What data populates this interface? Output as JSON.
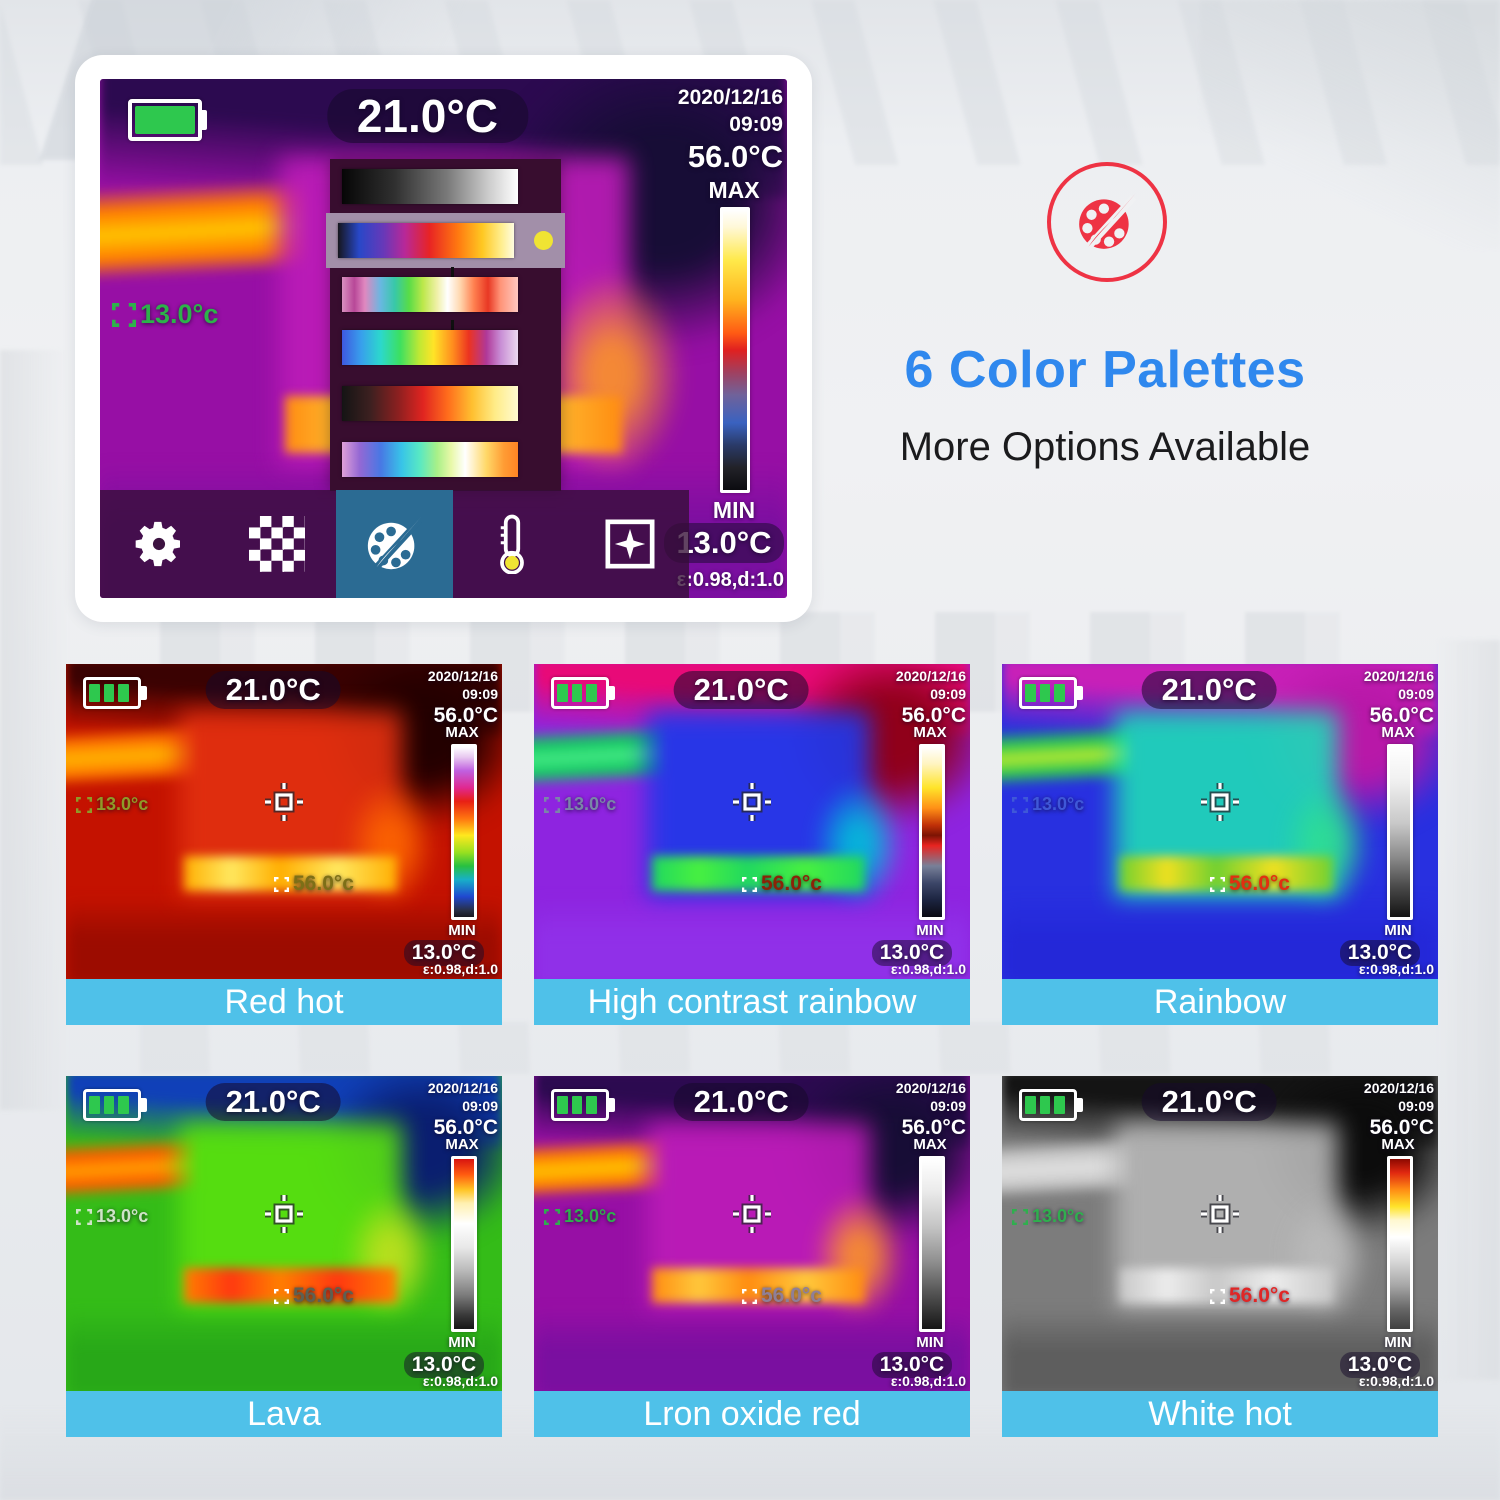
{
  "page": {
    "background_color": "#eceef1",
    "label_bar_color": "#4fc1e9"
  },
  "promo": {
    "headline": "6 Color Palettes",
    "subheadline": "More Options Available",
    "headline_color": "#2f88ee",
    "badge_icon": "palette-icon",
    "badge_color": "#ee3344"
  },
  "screen_overlay": {
    "center_temp": "21.0°C",
    "date": "2020/12/16",
    "time": "09:09",
    "max_temp": "56.0°C",
    "max_label": "MAX",
    "min_label": "MIN",
    "min_temp": "13.0°C",
    "emissivity": "ε:0.98,d:1.0",
    "spot_min": "13.0°c",
    "spot_max": "56.0°c",
    "battery_level": "full"
  },
  "hero_screen": {
    "palette_key": "iron_oxide_red",
    "spot_min_color": "#2db24a",
    "palette_menu": {
      "selected_index": 1,
      "indicator_color": "#f0e433",
      "rows": [
        {
          "colors": [
            "#060606",
            "#7a7a7a",
            "#ffffff"
          ]
        },
        {
          "colors": [
            "#16161e",
            "#2848c8",
            "#b82898",
            "#e82424",
            "#ff7810",
            "#ffc822",
            "#fffce0"
          ],
          "selected": true
        },
        {
          "colors": [
            "#d890c0",
            "#68b8e0",
            "#58dc48",
            "#ffffff",
            "#e83824",
            "#ffc8c0"
          ]
        },
        {
          "colors": [
            "#3e58e0",
            "#2cd8cc",
            "#3ce060",
            "#ffe427",
            "#ec3420",
            "#ecd8f0"
          ]
        },
        {
          "colors": [
            "#141414",
            "#8c2020",
            "#e02420",
            "#ffc030",
            "#fffad0"
          ]
        },
        {
          "colors": [
            "#e0a0d8",
            "#4878e4",
            "#58e8c4",
            "#ffffff",
            "#ff8424"
          ]
        }
      ]
    },
    "toolbar": {
      "active_index": 2,
      "active_bg": "#2b6b93",
      "items": [
        {
          "name": "settings",
          "icon": "gear-icon"
        },
        {
          "name": "image-mode",
          "icon": "grid-icon"
        },
        {
          "name": "palette",
          "icon": "palette-icon"
        },
        {
          "name": "temperature",
          "icon": "thermometer-icon"
        },
        {
          "name": "spot-meter",
          "icon": "crosshair-icon"
        }
      ]
    }
  },
  "thumbnails": [
    {
      "label": "Red hot",
      "palette_key": "red_hot",
      "spot_min_color": "#8f9a28",
      "spot_max_color": "#7d6f17"
    },
    {
      "label": "High contrast rainbow",
      "palette_key": "high_contrast_rainbow",
      "spot_min_color": "#7a86a8",
      "spot_max_color": "#8a2408"
    },
    {
      "label": "Rainbow",
      "palette_key": "rainbow",
      "spot_min_color": "#3f58d8",
      "spot_max_color": "#e22f10"
    },
    {
      "label": "Lava",
      "palette_key": "lava",
      "spot_min_color": "#cfe3c8",
      "spot_max_color": "#5d6052"
    },
    {
      "label": "Lron oxide red",
      "palette_key": "iron_oxide_red",
      "spot_min_color": "#2faf4e",
      "spot_max_color": "#8f7f98"
    },
    {
      "label": "White hot",
      "palette_key": "white_hot",
      "spot_min_color": "#2faf4e",
      "spot_max_color": "#e02626"
    }
  ],
  "palettes": {
    "red_hot": {
      "scale_colors": [
        "#ffffff",
        "#c060e0",
        "#e82014",
        "#ffe81e",
        "#28c040",
        "#2048d0",
        "#181820"
      ]
    },
    "high_contrast_rainbow": {
      "scale_colors": [
        "#ffffff",
        "#ffe42a",
        "#c03008",
        "#e82420",
        "#3c4668",
        "#0a0a12"
      ]
    },
    "rainbow": {
      "scale_colors": [
        "#ffffff",
        "#c8c8c8",
        "#8a8a8a",
        "#141414"
      ]
    },
    "lava": {
      "scale_colors": [
        "#d81410",
        "#ffc424",
        "#ffffff",
        "#b8b8b8",
        "#161616"
      ]
    },
    "iron_oxide_red": {
      "scale_colors": [
        "#ffffff",
        "#c4c4c4",
        "#909090",
        "#161616"
      ]
    },
    "white_hot": {
      "scale_colors": [
        "#8c0800",
        "#ff8c14",
        "#ffffff",
        "#a8a8a8",
        "#404040"
      ]
    },
    "hero_ironbow": {
      "scale_colors": [
        "#ffffff",
        "#ffe94a",
        "#ff5a14",
        "#e02020",
        "#3a62c0",
        "#0c0c10"
      ]
    }
  }
}
